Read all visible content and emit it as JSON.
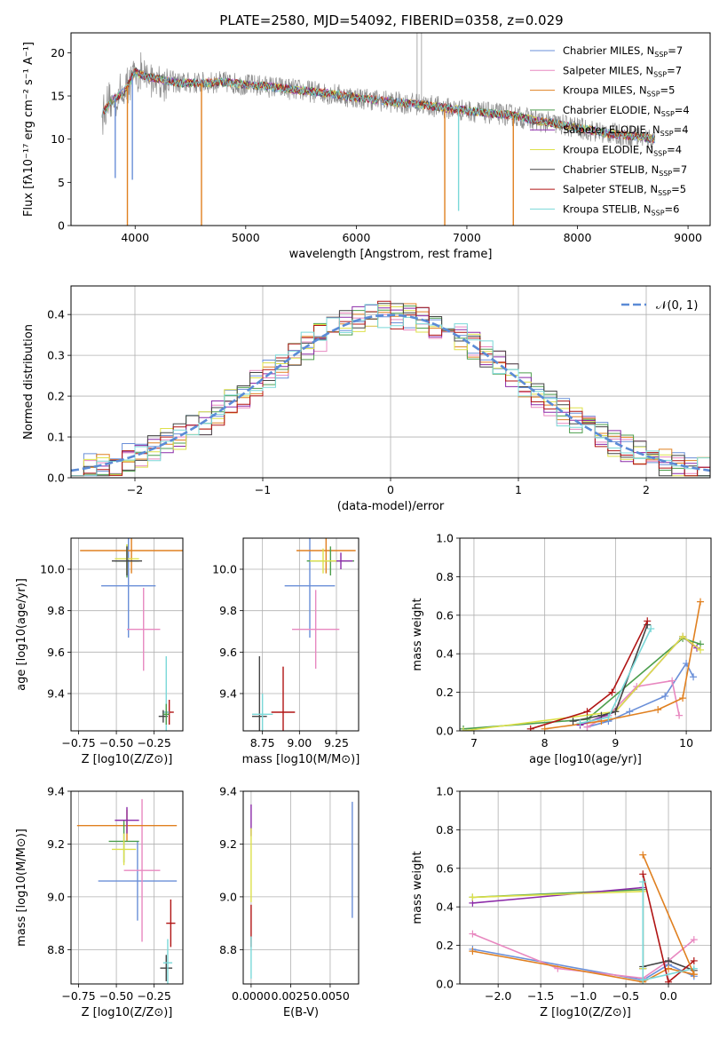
{
  "title": "PLATE=2580, MJD=54092, FIBERID=0358, z=0.029",
  "colors": {
    "Chabrier MILES": "#6a8fd8",
    "Salpeter MILES": "#e888c0",
    "Kroupa MILES": "#e08020",
    "Chabrier ELODIE": "#4c9e4c",
    "Salpeter ELODIE": "#8b2aa8",
    "Kroupa ELODIE": "#dde04a",
    "Chabrier STELIB": "#444444",
    "Salpeter STELIB": "#b01414",
    "Kroupa STELIB": "#7ad8d8",
    "data": "#8c8c8c",
    "gauss": "#5b8bd6"
  },
  "chart_data": [
    {
      "type": "line",
      "id": "spectrum",
      "title": "PLATE=2580, MJD=54092, FIBERID=0358, z=0.029",
      "xlabel": "wavelength [Angstrom, rest frame]",
      "ylabel": "Flux [fλ10⁻¹⁷ erg cm⁻² s⁻¹ A⁻¹]",
      "xlim": [
        3420,
        9200
      ],
      "ylim": [
        0,
        22.3
      ],
      "xticks": [
        4000,
        5000,
        6000,
        7000,
        8000,
        9000
      ],
      "yticks": [
        0,
        5,
        10,
        15,
        20
      ],
      "legend_position": "upper-right",
      "legend": [
        "Chabrier MILES, NSSP=7",
        "Salpeter MILES, NSSP=7",
        "Kroupa MILES, NSSP=5",
        "Chabrier ELODIE, NSSP=4",
        "Salpeter ELODIE, NSSP=4",
        "Kroupa ELODIE, NSSP=4",
        "Chabrier STELIB, NSSP=7",
        "Salpeter STELIB, NSSP=5",
        "Kroupa STELIB, NSSP=6"
      ],
      "continuum": {
        "x": [
          3700,
          3800,
          3900,
          4000,
          4100,
          4200,
          4400,
          4600,
          4800,
          5000,
          5200,
          5400,
          5600,
          5800,
          6000,
          6200,
          6400,
          6600,
          6800,
          7000,
          7200,
          7400,
          7600,
          7800,
          8000,
          8200,
          8400,
          8600,
          8700
        ],
        "y": [
          13.0,
          14.5,
          15.5,
          17.8,
          17.2,
          17.0,
          16.5,
          16.5,
          16.6,
          16.3,
          16.1,
          15.8,
          15.5,
          15.2,
          14.8,
          14.5,
          14.2,
          14.0,
          13.6,
          13.3,
          13.0,
          12.8,
          12.2,
          11.8,
          11.3,
          10.8,
          10.5,
          10.2,
          10.0
        ]
      },
      "dips": [
        {
          "x": 3930,
          "min": 0
        },
        {
          "x": 4600,
          "min": 0
        },
        {
          "x": 6800,
          "min": 0
        },
        {
          "x": 7420,
          "min": 0
        },
        {
          "x": 3820,
          "min": 5.5
        },
        {
          "x": 3975,
          "min": 5.3
        },
        {
          "x": 6925,
          "min": 1.7
        }
      ]
    },
    {
      "type": "histogram",
      "id": "residuals",
      "xlabel": "(data-model)/error",
      "ylabel": "Normed distribution",
      "xlim": [
        -2.5,
        2.5
      ],
      "ylim": [
        0,
        0.47
      ],
      "xticks": [
        -2,
        -1,
        0,
        1,
        2
      ],
      "yticks": [
        0.0,
        0.1,
        0.2,
        0.3,
        0.4
      ],
      "legend_position": "upper-right",
      "legend": [
        "𝒩(0, 1)"
      ],
      "bins": 50
    },
    {
      "type": "scatter",
      "id": "age-vs-Z",
      "xlabel": "Z [log10(Z/Z⊙)]",
      "ylabel": "age  [log10(age/yr)]",
      "xlim": [
        -0.8,
        -0.06
      ],
      "ylim": [
        9.22,
        10.15
      ],
      "xticks": [
        -0.75,
        -0.5,
        -0.25
      ],
      "yticks": [
        9.4,
        9.6,
        9.8,
        10.0
      ],
      "points": [
        {
          "model": "Chabrier MILES",
          "x": -0.42,
          "xerr": 0.18,
          "y": 9.92,
          "yerr": 0.25
        },
        {
          "model": "Salpeter MILES",
          "x": -0.32,
          "xerr": 0.11,
          "y": 9.71,
          "yerr": 0.2
        },
        {
          "model": "Kroupa MILES",
          "x": -0.4,
          "xerr": 0.34,
          "y": 10.09,
          "yerr": 0.11
        },
        {
          "model": "Chabrier ELODIE",
          "x": -0.43,
          "xerr": 0.08,
          "y": 10.04,
          "yerr": 0.08
        },
        {
          "model": "Kroupa ELODIE",
          "x": -0.43,
          "xerr": 0.08,
          "y": 10.05,
          "yerr": 0.07
        },
        {
          "model": "Chabrier STELIB",
          "x": -0.43,
          "xerr": 0.1,
          "y": 10.04,
          "yerr": 0.07
        },
        {
          "model": "Salpeter STELIB",
          "x": -0.15,
          "xerr": 0.03,
          "y": 9.31,
          "yerr": 0.06
        },
        {
          "model": "Kroupa STELIB",
          "x": -0.17,
          "xerr": 0.02,
          "y": 9.31,
          "yerr": 0.27
        },
        {
          "model": "Chabrier STELIB",
          "x": -0.19,
          "xerr": 0.03,
          "y": 9.29,
          "yerr": 0.03
        },
        {
          "model": "Chabrier ELODIE",
          "x": -0.17,
          "xerr": 0.02,
          "y": 9.3,
          "yerr": 0.05
        }
      ]
    },
    {
      "type": "scatter",
      "id": "age-vs-mass",
      "xlabel": "mass [log10(M/M⊙)]",
      "ylabel": "",
      "xlim": [
        8.62,
        9.4
      ],
      "ylim": [
        9.22,
        10.15
      ],
      "xticks": [
        8.75,
        9.0,
        9.25
      ],
      "yticks": [
        9.4,
        9.6,
        9.8,
        10.0
      ],
      "points": [
        {
          "model": "Chabrier MILES",
          "x": 9.07,
          "xerr": 0.17,
          "y": 9.92,
          "yerr": 0.25
        },
        {
          "model": "Salpeter MILES",
          "x": 9.11,
          "xerr": 0.16,
          "y": 9.71,
          "yerr": 0.19
        },
        {
          "model": "Kroupa MILES",
          "x": 9.18,
          "xerr": 0.2,
          "y": 10.09,
          "yerr": 0.11
        },
        {
          "model": "Chabrier ELODIE",
          "x": 9.21,
          "xerr": 0.16,
          "y": 10.04,
          "yerr": 0.07
        },
        {
          "model": "Salpeter ELODIE",
          "x": 9.28,
          "xerr": 0.08,
          "y": 10.04,
          "yerr": 0.04
        },
        {
          "model": "Kroupa ELODIE",
          "x": 9.16,
          "xerr": 0.09,
          "y": 10.04,
          "yerr": 0.06
        },
        {
          "model": "Chabrier STELIB",
          "x": 8.73,
          "xerr": 0.05,
          "y": 9.29,
          "yerr": 0.29
        },
        {
          "model": "Salpeter STELIB",
          "x": 8.89,
          "xerr": 0.08,
          "y": 9.31,
          "yerr": 0.22
        },
        {
          "model": "Kroupa STELIB",
          "x": 8.75,
          "xerr": 0.07,
          "y": 9.3,
          "yerr": 0.1
        }
      ]
    },
    {
      "type": "line",
      "id": "mass-weight-vs-age",
      "xlabel": "age  [log10(age/yr)]",
      "ylabel": "mass weight",
      "xlim": [
        6.8,
        10.35
      ],
      "ylim": [
        0,
        1.0
      ],
      "xticks": [
        7,
        8,
        9,
        10
      ],
      "yticks": [
        0.0,
        0.2,
        0.4,
        0.6,
        0.8,
        1.0
      ],
      "series": [
        {
          "model": "Chabrier MILES",
          "x": [
            8.6,
            8.9,
            9.2,
            9.7,
            10.0,
            10.1
          ],
          "y": [
            0.02,
            0.05,
            0.1,
            0.18,
            0.35,
            0.28
          ]
        },
        {
          "model": "Salpeter MILES",
          "x": [
            8.6,
            8.9,
            9.3,
            9.8,
            9.9
          ],
          "y": [
            0.02,
            0.08,
            0.23,
            0.26,
            0.08
          ]
        },
        {
          "model": "Kroupa MILES",
          "x": [
            8.0,
            8.8,
            9.6,
            9.95,
            10.2
          ],
          "y": [
            0.01,
            0.05,
            0.11,
            0.17,
            0.67
          ]
        },
        {
          "model": "Chabrier ELODIE",
          "x": [
            6.85,
            8.6,
            9.95,
            10.2
          ],
          "y": [
            0.01,
            0.06,
            0.48,
            0.45
          ]
        },
        {
          "model": "Salpeter ELODIE",
          "x": [
            8.5,
            9.0,
            9.95,
            10.15
          ],
          "y": [
            0.03,
            0.1,
            0.49,
            0.43
          ]
        },
        {
          "model": "Kroupa ELODIE",
          "x": [
            6.85,
            9.0,
            9.95,
            10.2
          ],
          "y": [
            0.0,
            0.1,
            0.49,
            0.42
          ]
        },
        {
          "model": "Chabrier STELIB",
          "x": [
            8.4,
            8.8,
            9.0,
            9.45
          ],
          "y": [
            0.05,
            0.08,
            0.1,
            0.55
          ]
        },
        {
          "model": "Salpeter STELIB",
          "x": [
            7.8,
            8.6,
            8.95,
            9.45
          ],
          "y": [
            0.01,
            0.1,
            0.2,
            0.57
          ]
        },
        {
          "model": "Kroupa STELIB",
          "x": [
            8.5,
            8.9,
            9.5
          ],
          "y": [
            0.04,
            0.07,
            0.53
          ]
        }
      ]
    },
    {
      "type": "scatter",
      "id": "mass-vs-Z",
      "xlabel": "Z [log10(Z/Z⊙)]",
      "ylabel": "mass [log10(M/M⊙)]",
      "xlim": [
        -0.8,
        -0.06
      ],
      "ylim": [
        8.67,
        9.4
      ],
      "xticks": [
        -0.75,
        -0.5,
        -0.25
      ],
      "yticks": [
        8.8,
        9.0,
        9.2,
        9.4
      ],
      "points": [
        {
          "model": "Chabrier MILES",
          "x": -0.36,
          "xerr": 0.26,
          "y": 9.06,
          "yerr": 0.15
        },
        {
          "model": "Salpeter MILES",
          "x": -0.33,
          "xerr": 0.12,
          "y": 9.1,
          "yerr": 0.27
        },
        {
          "model": "Kroupa MILES",
          "x": -0.43,
          "xerr": 0.33,
          "y": 9.27,
          "yerr": 0.06
        },
        {
          "model": "Chabrier ELODIE",
          "x": -0.45,
          "xerr": 0.1,
          "y": 9.21,
          "yerr": 0.08
        },
        {
          "model": "Salpeter ELODIE",
          "x": -0.43,
          "xerr": 0.08,
          "y": 9.29,
          "yerr": 0.05
        },
        {
          "model": "Kroupa ELODIE",
          "x": -0.45,
          "xerr": 0.08,
          "y": 9.18,
          "yerr": 0.06
        },
        {
          "model": "Chabrier STELIB",
          "x": -0.17,
          "xerr": 0.04,
          "y": 8.73,
          "yerr": 0.05
        },
        {
          "model": "Salpeter STELIB",
          "x": -0.14,
          "xerr": 0.03,
          "y": 8.9,
          "yerr": 0.09
        },
        {
          "model": "Kroupa STELIB",
          "x": -0.16,
          "xerr": 0.03,
          "y": 8.75,
          "yerr": 0.09
        }
      ]
    },
    {
      "type": "scatter",
      "id": "mass-vs-ebv",
      "xlabel": "E(B-V)",
      "ylabel": "",
      "xlim": [
        -0.0005,
        0.0068
      ],
      "ylim": [
        8.67,
        9.4
      ],
      "xticks": [
        0.0,
        0.0025,
        0.005
      ],
      "xticklabels": [
        "0.0000",
        "0.0025",
        "0.0050"
      ],
      "yticks": [
        8.8,
        9.0,
        9.2,
        9.4
      ],
      "points": [
        {
          "model": "Chabrier MILES",
          "x": 0.0064,
          "xerr": 0,
          "y": 9.14,
          "yerr": 0.22
        },
        {
          "model": "Salpeter ELODIE",
          "x": 0.0,
          "xerr": 0,
          "y": 9.29,
          "yerr": 0.06
        },
        {
          "model": "Kroupa ELODIE",
          "x": 0.0,
          "xerr": 0,
          "y": 9.12,
          "yerr": 0.14
        },
        {
          "model": "Salpeter STELIB",
          "x": 0.0,
          "xerr": 0,
          "y": 8.89,
          "yerr": 0.08
        },
        {
          "model": "Kroupa STELIB",
          "x": 0.0,
          "xerr": 0,
          "y": 8.77,
          "yerr": 0.08
        }
      ]
    },
    {
      "type": "line",
      "id": "mass-weight-vs-Z",
      "xlabel": "Z [log10(Z/Z⊙)]",
      "ylabel": "mass weight",
      "xlim": [
        -2.45,
        0.5
      ],
      "ylim": [
        0,
        1.0
      ],
      "xticks": [
        -2.0,
        -1.5,
        -1.0,
        -0.5,
        0.0
      ],
      "yticks": [
        0.0,
        0.2,
        0.4,
        0.6,
        0.8,
        1.0
      ],
      "series": [
        {
          "model": "Chabrier MILES",
          "x": [
            -2.3,
            -0.3,
            0.0,
            0.3
          ],
          "y": [
            0.18,
            0.02,
            0.1,
            0.04
          ]
        },
        {
          "model": "Salpeter MILES",
          "x": [
            -2.3,
            -1.3,
            -0.3,
            0.0,
            0.3
          ],
          "y": [
            0.26,
            0.08,
            0.03,
            0.12,
            0.23
          ]
        },
        {
          "model": "Kroupa MILES",
          "x": [
            -2.3,
            -0.3,
            0.0,
            0.3
          ],
          "y": [
            0.17,
            0.01,
            0.08,
            0.05
          ]
        },
        {
          "model": "Chabrier ELODIE",
          "x": [
            -2.3,
            -0.3,
            -0.3
          ],
          "y": [
            0.45,
            0.49,
            0.08
          ]
        },
        {
          "model": "Salpeter ELODIE",
          "x": [
            -2.3,
            -0.3,
            -0.3
          ],
          "y": [
            0.42,
            0.5,
            0.08
          ]
        },
        {
          "model": "Kroupa ELODIE",
          "x": [
            -2.3,
            -0.3,
            -0.3
          ],
          "y": [
            0.45,
            0.48,
            0.08
          ]
        },
        {
          "model": "Chabrier STELIB",
          "x": [
            -0.3,
            0.0,
            0.3
          ],
          "y": [
            0.09,
            0.12,
            0.07
          ]
        },
        {
          "model": "Salpeter STELIB",
          "x": [
            -0.3,
            0.0,
            0.3
          ],
          "y": [
            0.57,
            0.01,
            0.12
          ]
        },
        {
          "model": "Kroupa STELIB",
          "x": [
            -0.3,
            -0.3,
            0.3
          ],
          "y": [
            0.53,
            0.02,
            0.08
          ]
        },
        {
          "model": "Kroupa MILES",
          "x": [
            -0.3,
            0.3
          ],
          "y": [
            0.67,
            0.05
          ]
        }
      ]
    }
  ]
}
